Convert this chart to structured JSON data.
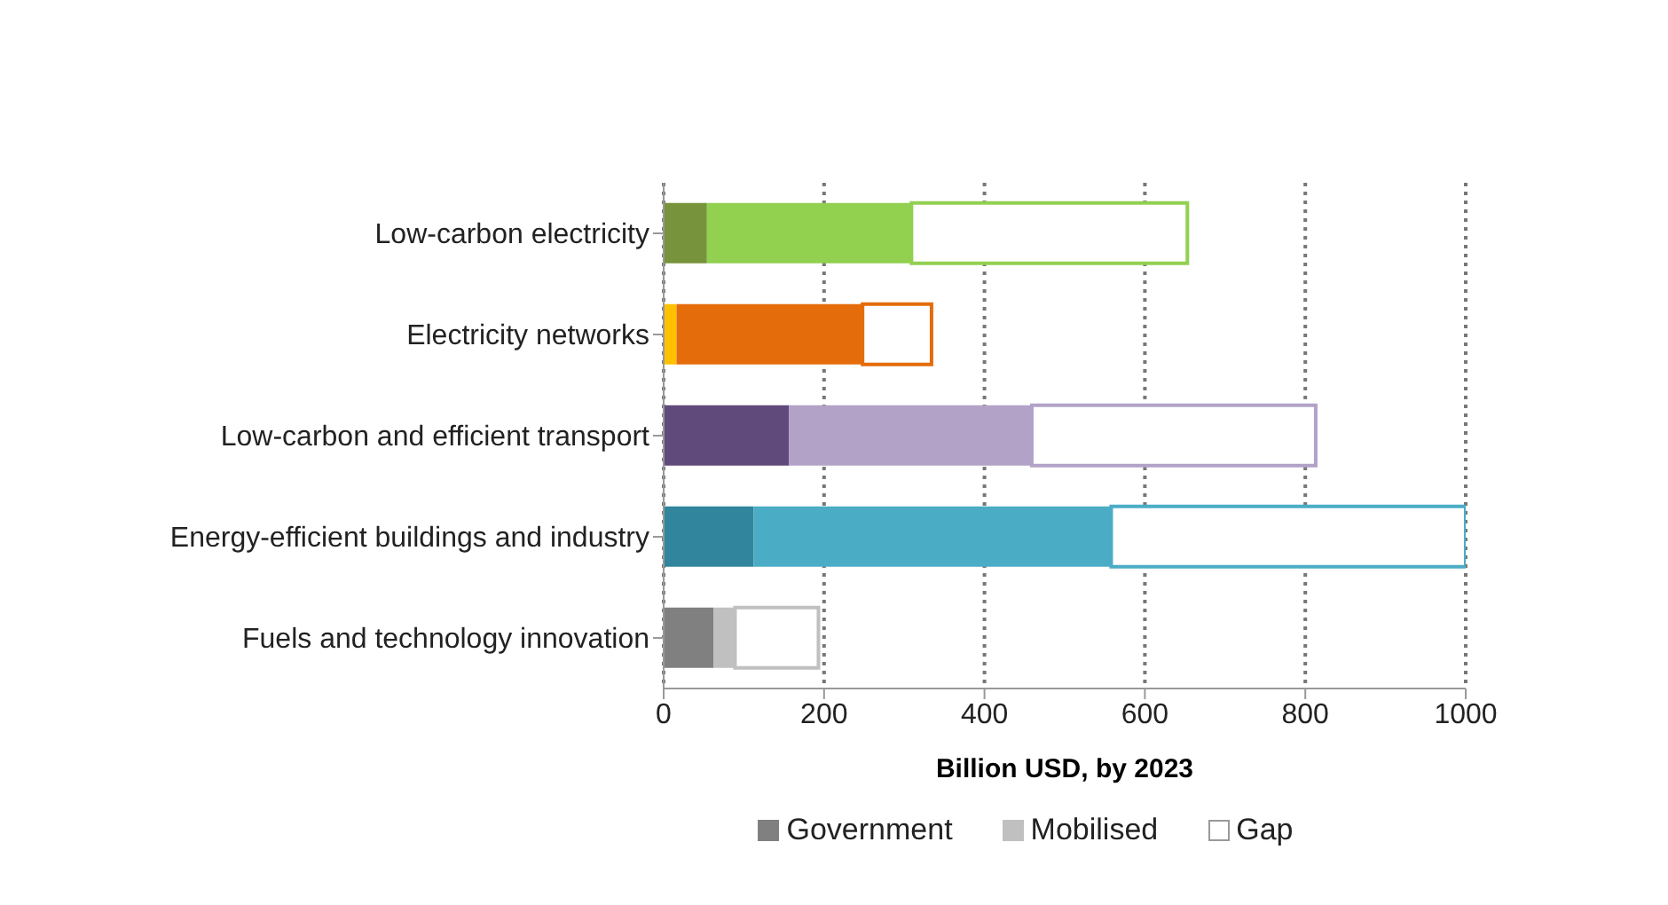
{
  "chart_data": {
    "type": "bar",
    "orientation": "horizontal",
    "stacked": true,
    "xlabel": "Billion USD, by 2023",
    "categories": [
      "Low-carbon electricity",
      "Electricity networks",
      "Low-carbon and efficient transport",
      "Energy-efficient buildings and industry",
      "Fuels and technology innovation"
    ],
    "series": [
      {
        "name": "Government",
        "color": "#808080",
        "colors": [
          "#77933c",
          "#ffc000",
          "#604a7b",
          "#31859c",
          "#808080"
        ],
        "values": [
          54,
          16,
          156,
          112,
          62
        ]
      },
      {
        "name": "Mobilised",
        "color": "#c0c0c0",
        "colors": [
          "#92d050",
          "#e46c0a",
          "#b3a2c7",
          "#4bacc6",
          "#c0c0c0"
        ],
        "values": [
          255,
          232,
          303,
          446,
          27
        ]
      },
      {
        "name": "Gap",
        "color": "#ffffff",
        "colors": [
          "#ffffff",
          "#ffffff",
          "#ffffff",
          "#ffffff",
          "#ffffff"
        ],
        "values": [
          344,
          86,
          354,
          442,
          104
        ]
      }
    ],
    "xlim": [
      0,
      1000
    ],
    "xticks": [
      0,
      200,
      400,
      600,
      800,
      1000
    ],
    "grid": "x",
    "legend": "bottom"
  }
}
